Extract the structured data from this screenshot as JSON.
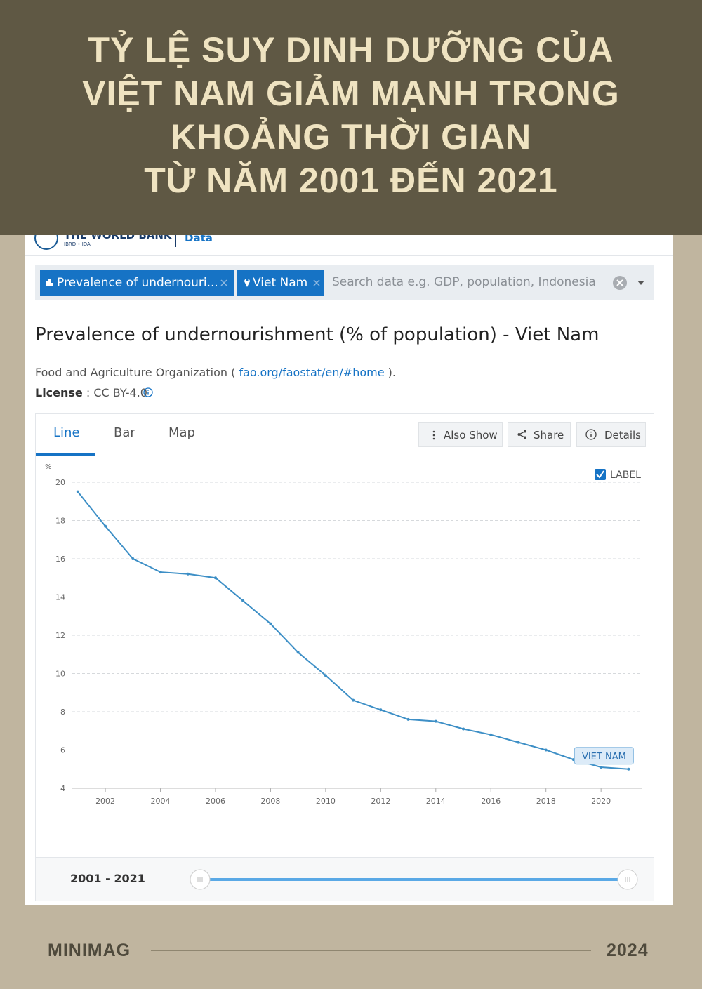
{
  "header": {
    "title_lines": [
      "TỶ LỆ SUY DINH DƯỠNG CỦA",
      "VIỆT NAM GIẢM MẠNH TRONG",
      "KHOẢNG THỜI GIAN",
      "TỪ NĂM 2001 ĐẾN 2021"
    ]
  },
  "site": {
    "logo": "THE WORLD BANK",
    "logo_sub": "IBRD • IDA",
    "section": "Data"
  },
  "search": {
    "chips": [
      "Prevalence of undernouri...",
      "Viet Nam"
    ],
    "placeholder": "Search data e.g. GDP, population, Indonesia"
  },
  "page": {
    "source": "Food and Agriculture Organization (",
    "source_link": "fao.org/faostat/en/#home",
    "source_end": ").",
    "license_label": "License",
    "license_value": ": CC BY-4.0"
  },
  "tabs": [
    "Line",
    "Bar",
    "Map"
  ],
  "buttons": [
    "Also Show",
    "Share",
    "Details"
  ],
  "label_toggle": "LABEL",
  "range": {
    "label": "2001 - 2021"
  },
  "footer": {
    "brand": "MINIMAG",
    "year": "2024"
  },
  "chart_data": {
    "type": "line",
    "title": "Prevalence of undernourishment (% of population) - Viet Nam",
    "y_label": "%",
    "x": [
      2001,
      2002,
      2003,
      2004,
      2005,
      2006,
      2007,
      2008,
      2009,
      2010,
      2011,
      2012,
      2013,
      2014,
      2015,
      2016,
      2017,
      2018,
      2019,
      2020,
      2021
    ],
    "series": [
      {
        "name": "VIET NAM",
        "color": "#3d8fc6",
        "values": [
          19.5,
          17.7,
          16.0,
          15.3,
          15.2,
          15.0,
          13.8,
          12.6,
          11.1,
          9.9,
          8.6,
          8.1,
          7.6,
          7.5,
          7.1,
          6.8,
          6.4,
          6.0,
          5.5,
          5.1,
          5.0
        ]
      }
    ],
    "xlim": [
      2000.8,
      2021.5
    ],
    "ylim": [
      4,
      20
    ],
    "xticks": [
      2002,
      2004,
      2006,
      2008,
      2010,
      2012,
      2014,
      2016,
      2018,
      2020
    ],
    "yticks": [
      4,
      6,
      8,
      10,
      12,
      14,
      16,
      18,
      20
    ],
    "grid": true
  }
}
